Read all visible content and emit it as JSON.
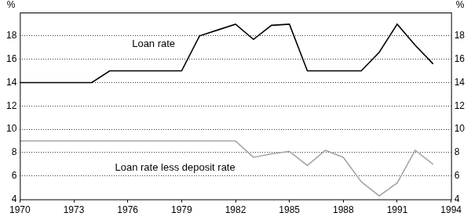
{
  "chart_data": {
    "type": "line",
    "y_label": "%",
    "x": [
      1970,
      1971,
      1972,
      1973,
      1974,
      1975,
      1976,
      1977,
      1978,
      1979,
      1980,
      1981,
      1982,
      1983,
      1984,
      1985,
      1986,
      1987,
      1988,
      1989,
      1990,
      1991,
      1992,
      1993
    ],
    "series": [
      {
        "name": "Loan rate",
        "color": "#000000",
        "values": [
          14,
          14,
          14,
          14,
          14,
          15,
          15,
          15,
          15,
          15,
          18,
          18.5,
          19,
          17.7,
          18.9,
          19,
          15,
          15,
          15,
          15,
          16.6,
          19,
          17.2,
          15.6
        ]
      },
      {
        "name": "Loan rate less deposit rate",
        "color": "#a6a6a6",
        "values": [
          9,
          9,
          9,
          9,
          9,
          9,
          9,
          9,
          9,
          9,
          9,
          9,
          9,
          7.6,
          7.9,
          8.1,
          6.9,
          8.2,
          7.6,
          5.5,
          4.3,
          5.4,
          8.2,
          7.0
        ]
      }
    ],
    "xlim": [
      1970,
      1994
    ],
    "xticks": [
      1970,
      1973,
      1976,
      1979,
      1982,
      1985,
      1988,
      1991,
      1994
    ],
    "ylim": [
      4,
      20
    ],
    "yticks": [
      4,
      6,
      8,
      10,
      12,
      14,
      16,
      18
    ],
    "grid": true
  }
}
